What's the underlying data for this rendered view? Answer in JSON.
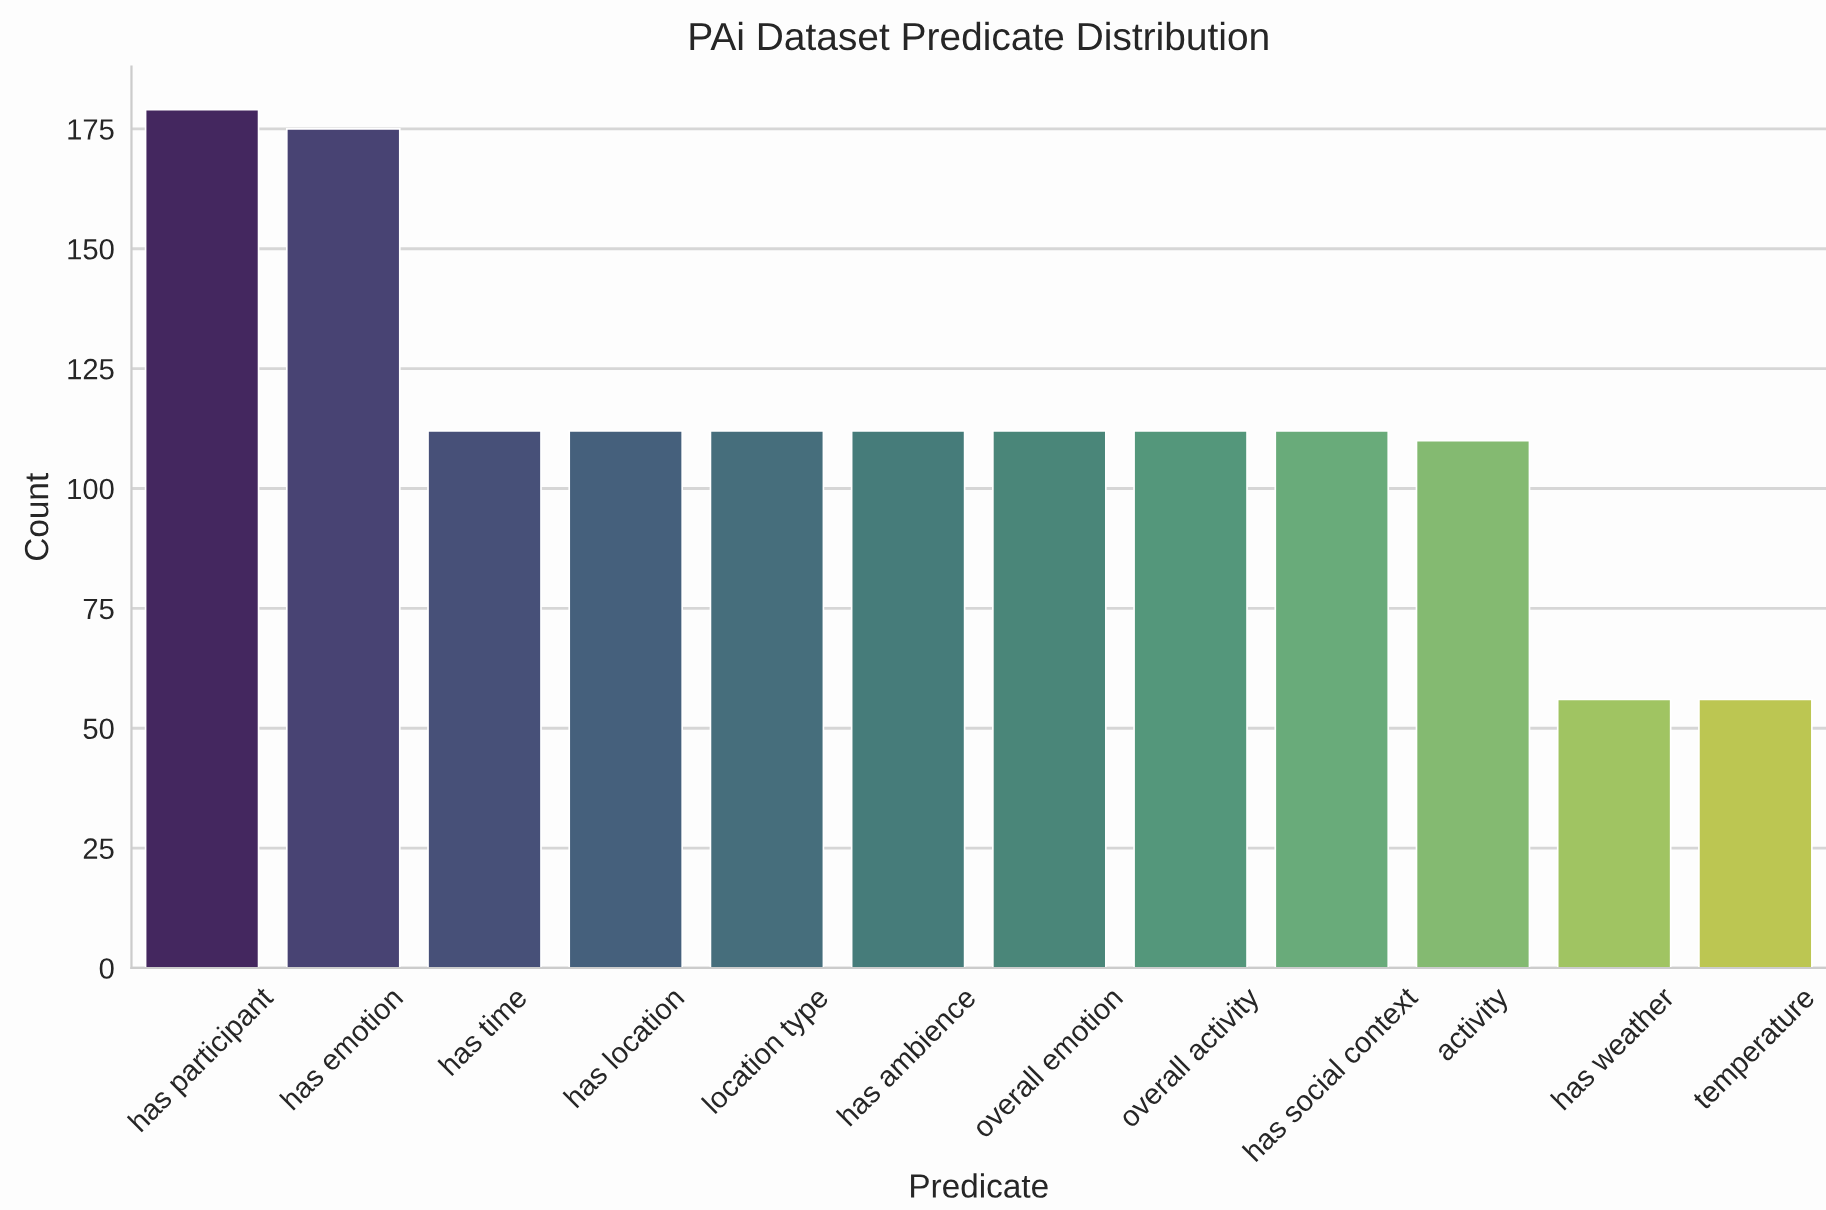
{
  "chart_data": {
    "type": "bar",
    "title": "PAi Dataset Predicate Distribution",
    "xlabel": "Predicate",
    "ylabel": "Count",
    "categories": [
      "has participant",
      "has emotion",
      "has time",
      "has location",
      "location type",
      "has ambience",
      "overall emotion",
      "overall activity",
      "has social context",
      "activity",
      "has weather",
      "temperature"
    ],
    "values": [
      179,
      175,
      112,
      112,
      112,
      112,
      112,
      112,
      112,
      110,
      56,
      56
    ],
    "colors": [
      "#44275f",
      "#484373",
      "#475078",
      "#45607c",
      "#466e7c",
      "#467c7a",
      "#4a8679",
      "#54977b",
      "#69ab7a",
      "#84ba71",
      "#a0c462",
      "#bcc652"
    ],
    "ylim": [
      0,
      188
    ],
    "yticks": [
      0,
      25,
      50,
      75,
      100,
      125,
      150,
      175
    ],
    "grid": "y"
  }
}
